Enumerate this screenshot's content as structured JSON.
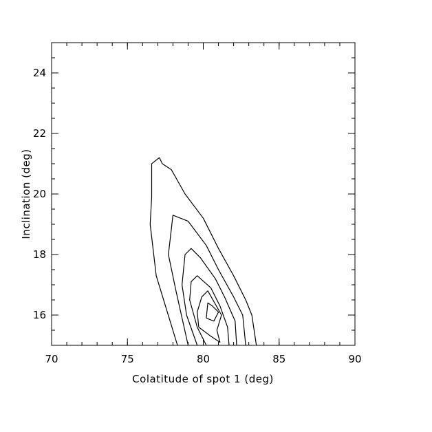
{
  "chart_data": {
    "type": "contour",
    "title": "",
    "xlabel": "Colatitude of spot 1 (deg)",
    "ylabel": "Inclination (deg)",
    "xlim": [
      70,
      90
    ],
    "ylim": [
      15,
      25
    ],
    "x_ticks": [
      70,
      75,
      80,
      85,
      90
    ],
    "y_ticks": [
      16,
      18,
      20,
      22,
      24
    ],
    "x_minor_step": 1,
    "y_minor_step": 0.5,
    "grid": false,
    "legend": "none",
    "line_color": "#000000",
    "contours": [
      {
        "points": [
          [
            78.3,
            15
          ],
          [
            76.9,
            17.3
          ],
          [
            76.5,
            19.0
          ],
          [
            76.6,
            19.9
          ],
          [
            76.6,
            21.0
          ],
          [
            77.1,
            21.2
          ],
          [
            77.3,
            21.0
          ],
          [
            77.9,
            20.8
          ],
          [
            78.8,
            20.0
          ],
          [
            80.0,
            19.2
          ],
          [
            81.0,
            18.2
          ],
          [
            82.0,
            17.3
          ],
          [
            82.8,
            16.5
          ],
          [
            83.2,
            16.0
          ],
          [
            83.5,
            15
          ]
        ]
      },
      {
        "points": [
          [
            79.0,
            15
          ],
          [
            78.2,
            16.8
          ],
          [
            77.7,
            18.0
          ],
          [
            78.0,
            19.3
          ],
          [
            79.0,
            19.1
          ],
          [
            80.2,
            18.3
          ],
          [
            81.0,
            17.5
          ],
          [
            82.0,
            16.6
          ],
          [
            82.6,
            16.0
          ],
          [
            82.8,
            15
          ]
        ]
      },
      {
        "points": [
          [
            79.6,
            15
          ],
          [
            78.9,
            16.0
          ],
          [
            78.6,
            17.0
          ],
          [
            78.8,
            18.0
          ],
          [
            79.2,
            18.2
          ],
          [
            79.8,
            17.9
          ],
          [
            80.8,
            17.2
          ],
          [
            81.4,
            16.6
          ],
          [
            82.1,
            15.8
          ],
          [
            82.2,
            15
          ]
        ]
      },
      {
        "points": [
          [
            80.2,
            15
          ],
          [
            79.6,
            15.6
          ],
          [
            79.1,
            16.5
          ],
          [
            79.2,
            17.1
          ],
          [
            79.6,
            17.3
          ],
          [
            80.5,
            16.9
          ],
          [
            81.1,
            16.3
          ],
          [
            81.6,
            15.6
          ],
          [
            81.7,
            15
          ]
        ]
      },
      {
        "points": [
          [
            79.7,
            15.6
          ],
          [
            79.6,
            16.1
          ],
          [
            79.9,
            16.6
          ],
          [
            80.3,
            16.8
          ],
          [
            81.2,
            16.0
          ],
          [
            80.9,
            15.5
          ],
          [
            81.1,
            15.1
          ],
          [
            80.5,
            15.3
          ],
          [
            79.7,
            15.6
          ]
        ]
      },
      {
        "points": [
          [
            80.2,
            15.9
          ],
          [
            80.3,
            16.4
          ],
          [
            80.6,
            16.3
          ],
          [
            81.0,
            16.1
          ],
          [
            80.7,
            15.8
          ],
          [
            80.2,
            15.9
          ]
        ]
      }
    ]
  }
}
